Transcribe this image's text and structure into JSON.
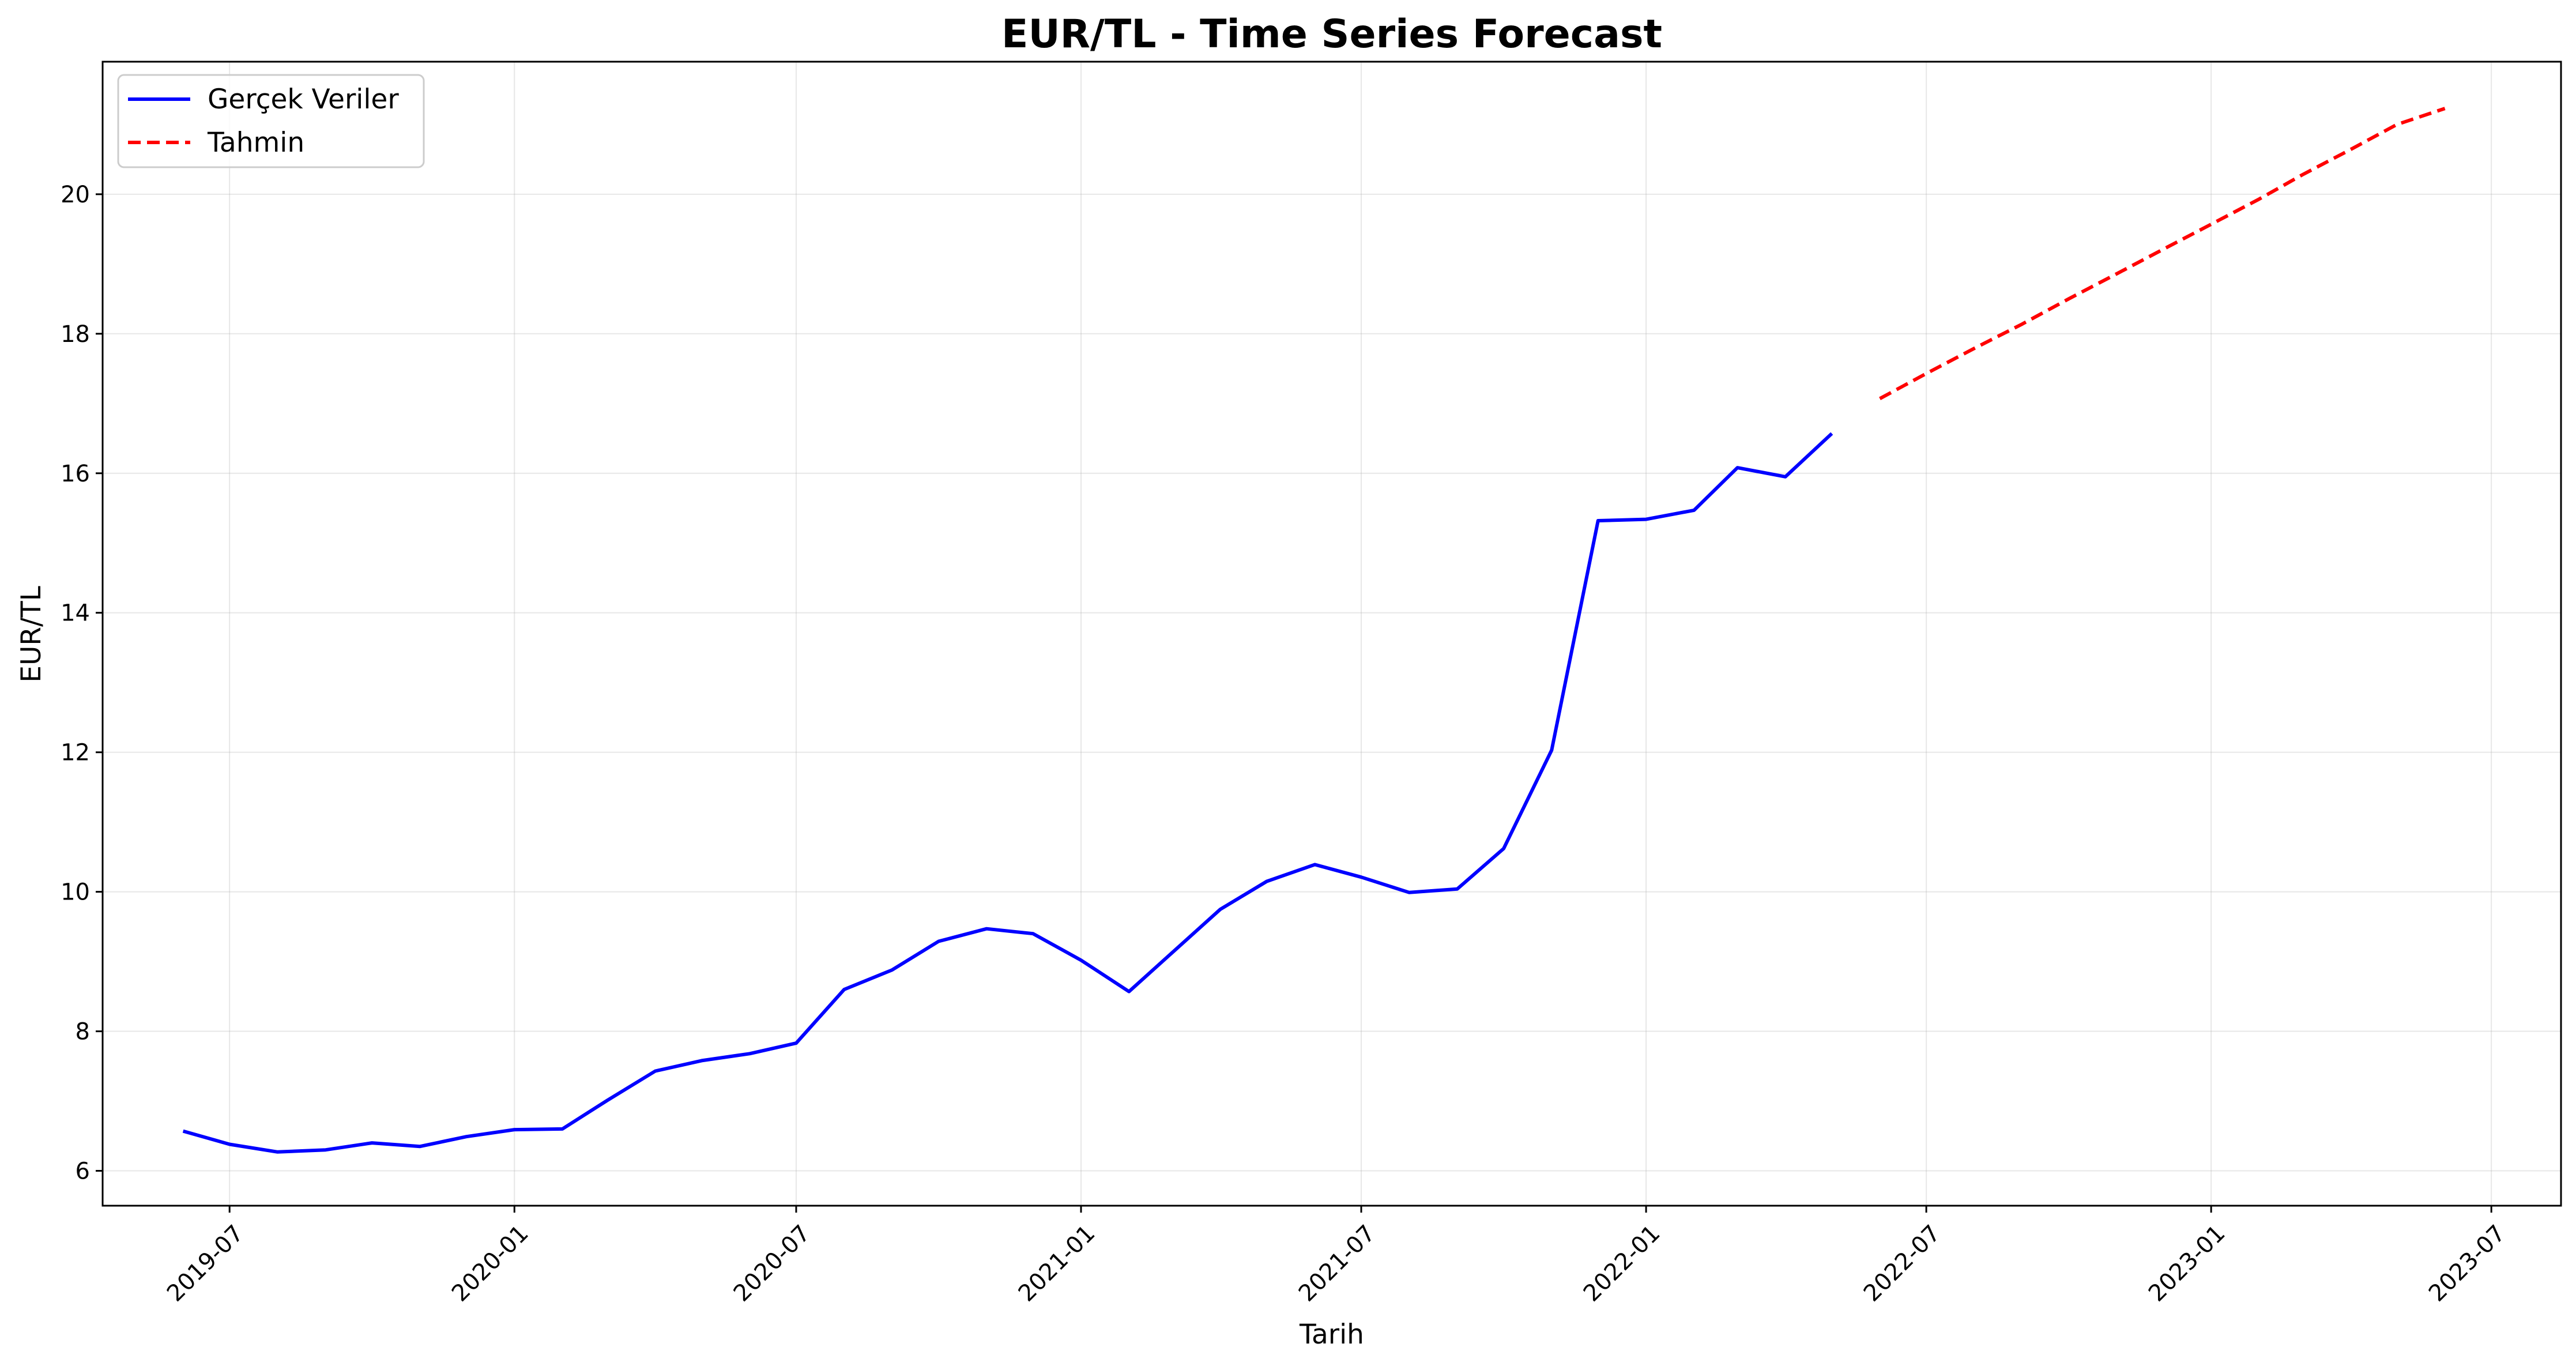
{
  "chart_data": {
    "type": "line",
    "title": "EUR/TL - Time Series Forecast",
    "xlabel": "Tarih",
    "ylabel": "EUR/TL",
    "xlim": [
      "2019-04-10",
      "2023-08-15"
    ],
    "ylim": [
      5.5,
      21.9
    ],
    "x_tick_labels": [
      "2019-07",
      "2020-01",
      "2020-07",
      "2021-01",
      "2021-07",
      "2022-01",
      "2022-07",
      "2023-01",
      "2023-07"
    ],
    "y_ticks": [
      6,
      8,
      10,
      12,
      14,
      16,
      18,
      20
    ],
    "grid": true,
    "legend_position": "top-left",
    "series": [
      {
        "name": "Gerçek Veriler",
        "color": "#0000ff",
        "style": "solid",
        "x": [
          "2019-06-01",
          "2019-07-01",
          "2019-08-01",
          "2019-09-01",
          "2019-10-01",
          "2019-11-01",
          "2019-12-01",
          "2020-01-01",
          "2020-02-01",
          "2020-03-01",
          "2020-04-01",
          "2020-05-01",
          "2020-06-01",
          "2020-07-01",
          "2020-08-01",
          "2020-09-01",
          "2020-10-01",
          "2020-11-01",
          "2020-12-01",
          "2021-01-01",
          "2021-02-01",
          "2021-03-01",
          "2021-04-01",
          "2021-05-01",
          "2021-06-01",
          "2021-07-01",
          "2021-08-01",
          "2021-09-01",
          "2021-10-01",
          "2021-11-01",
          "2021-12-01",
          "2022-01-01",
          "2022-02-01",
          "2022-03-01",
          "2022-04-01",
          "2022-05-01"
        ],
        "values": [
          6.57,
          6.38,
          6.27,
          6.3,
          6.4,
          6.35,
          6.49,
          6.59,
          6.6,
          7.01,
          7.43,
          7.58,
          7.68,
          7.83,
          8.6,
          8.88,
          9.29,
          9.47,
          9.4,
          9.02,
          8.57,
          9.13,
          9.75,
          10.15,
          10.39,
          10.21,
          9.99,
          10.04,
          10.62,
          12.03,
          15.32,
          15.34,
          15.47,
          16.08,
          15.95,
          16.57
        ]
      },
      {
        "name": "Tahmin",
        "color": "#ff0000",
        "style": "dashed",
        "x": [
          "2022-06-01",
          "2022-07-01",
          "2022-08-01",
          "2022-09-01",
          "2022-10-01",
          "2022-11-01",
          "2022-12-01",
          "2023-01-01",
          "2023-02-01",
          "2023-03-01",
          "2023-04-01",
          "2023-05-01",
          "2023-06-01"
        ],
        "values": [
          17.07,
          17.43,
          17.79,
          18.14,
          18.5,
          18.86,
          19.21,
          19.57,
          19.93,
          20.28,
          20.64,
          21.0,
          21.23
        ]
      }
    ]
  }
}
